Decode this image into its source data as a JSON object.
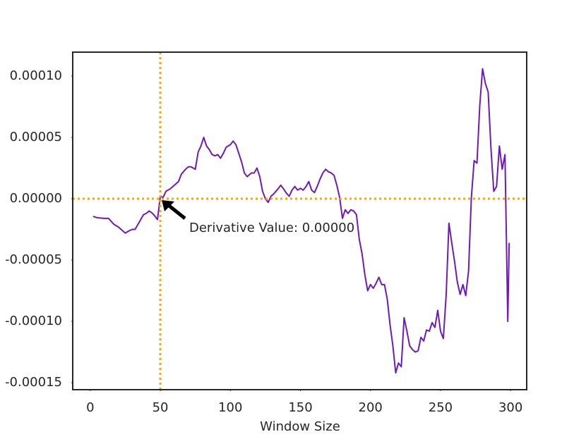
{
  "chart_data": {
    "type": "line",
    "xlabel": "Window Size",
    "x": [
      2,
      5,
      10,
      13,
      17,
      20,
      23,
      25,
      28,
      30,
      32,
      35,
      38,
      40,
      42,
      44,
      46,
      48,
      50,
      52,
      54,
      57,
      60,
      63,
      65,
      68,
      70,
      72,
      75,
      77,
      79,
      81,
      83,
      85,
      87,
      89,
      91,
      93,
      95,
      97,
      100,
      102,
      104,
      106,
      108,
      110,
      112,
      115,
      117,
      119,
      121,
      123,
      125,
      127,
      129,
      131,
      134,
      136,
      138,
      140,
      142,
      144,
      146,
      148,
      150,
      152,
      154,
      156,
      158,
      160,
      162,
      164,
      166,
      168,
      170,
      172,
      174,
      176,
      178,
      180,
      182,
      184,
      186,
      188,
      190,
      192,
      194,
      196,
      198,
      200,
      202,
      204,
      206,
      208,
      210,
      212,
      214,
      216,
      218,
      220,
      222,
      224,
      226,
      228,
      230,
      232,
      234,
      236,
      238,
      240,
      242,
      244,
      246,
      248,
      250,
      252,
      254,
      256,
      258,
      260,
      262,
      264,
      266,
      268,
      270,
      272,
      274,
      276,
      278,
      280,
      282,
      284,
      286,
      288,
      290,
      292,
      294,
      296,
      298,
      299
    ],
    "series": [
      {
        "name": "Derivative",
        "color": "#6f1ab8",
        "values": [
          -1.44e-05,
          -1.55e-05,
          -1.6e-05,
          -1.6e-05,
          -2.1e-05,
          -2.3e-05,
          -2.6e-05,
          -2.8e-05,
          -2.6e-05,
          -2.5e-05,
          -2.5e-05,
          -1.9e-05,
          -1.3e-05,
          -1.2e-05,
          -1e-05,
          -1.15e-05,
          -1.4e-05,
          -1.7e-05,
          2e-06,
          1e-06,
          6e-06,
          8e-06,
          1.1e-05,
          1.4e-05,
          2e-05,
          2.4e-05,
          2.6e-05,
          2.6e-05,
          2.4e-05,
          3.8e-05,
          4.3e-05,
          5e-05,
          4.3e-05,
          4e-05,
          3.6e-05,
          3.5e-05,
          3.6e-05,
          3.3e-05,
          3.7e-05,
          4.2e-05,
          4.4e-05,
          4.7e-05,
          4.4e-05,
          3.7e-05,
          3e-05,
          2.1e-05,
          1.8e-05,
          2.1e-05,
          2.1e-05,
          2.5e-05,
          1.8e-05,
          6e-06,
          0,
          -3e-06,
          2e-06,
          4e-06,
          8e-06,
          1.1e-05,
          8e-06,
          4.5e-06,
          2e-06,
          7e-06,
          1e-05,
          7e-06,
          8.5e-06,
          7e-06,
          1e-05,
          1.4e-05,
          7e-06,
          5e-06,
          1e-05,
          1.6e-05,
          2.1e-05,
          2.4e-05,
          2.2e-05,
          2.1e-05,
          1.9e-05,
          1.1e-05,
          1e-06,
          -1.6e-05,
          -9e-06,
          -1.2e-05,
          -9e-06,
          -1e-05,
          -1.3e-05,
          -3.3e-05,
          -4.5e-05,
          -6.2e-05,
          -7.5e-05,
          -7e-05,
          -7.3e-05,
          -6.9e-05,
          -6.4e-05,
          -7e-05,
          -7e-05,
          -8.2e-05,
          -0.000103,
          -0.00012,
          -0.000142,
          -0.000134,
          -0.000137,
          -9.7e-05,
          -0.000108,
          -0.00012,
          -0.000123,
          -0.000125,
          -0.000124,
          -0.000113,
          -0.000116,
          -0.000107,
          -0.000108,
          -0.000101,
          -0.000105,
          -9.1e-05,
          -0.000108,
          -0.000114,
          -7.9e-05,
          -2e-05,
          -3.6e-05,
          -5.1e-05,
          -6.8e-05,
          -7.8e-05,
          -7e-05,
          -7.9e-05,
          -5.9e-05,
          1e-06,
          3.1e-05,
          2.9e-05,
          7.6e-05,
          0.000106,
          9.4e-05,
          8.7e-05,
          4.1e-05,
          6e-06,
          1e-05,
          4.3e-05,
          2.4e-05,
          3.6e-05,
          -0.0001,
          -3.6e-05
        ]
      }
    ],
    "xlim": [
      -12.5,
      311.5
    ],
    "xticks": [
      0,
      50,
      100,
      150,
      200,
      250,
      300
    ],
    "ylim": [
      -0.0001557,
      0.0001195
    ],
    "yticks": [
      {
        "value": -0.00015,
        "label": "-0.00015"
      },
      {
        "value": -0.0001,
        "label": "-0.00010"
      },
      {
        "value": -5e-05,
        "label": "-0.00005"
      },
      {
        "value": 0,
        "label": "0.00000"
      },
      {
        "value": 5e-05,
        "label": "0.00005"
      },
      {
        "value": 0.0001,
        "label": "0.00010"
      }
    ],
    "vline": 50,
    "hline": 0,
    "reference_color": "#ffa500",
    "annotation": "Derivative Value: 0.00000"
  }
}
